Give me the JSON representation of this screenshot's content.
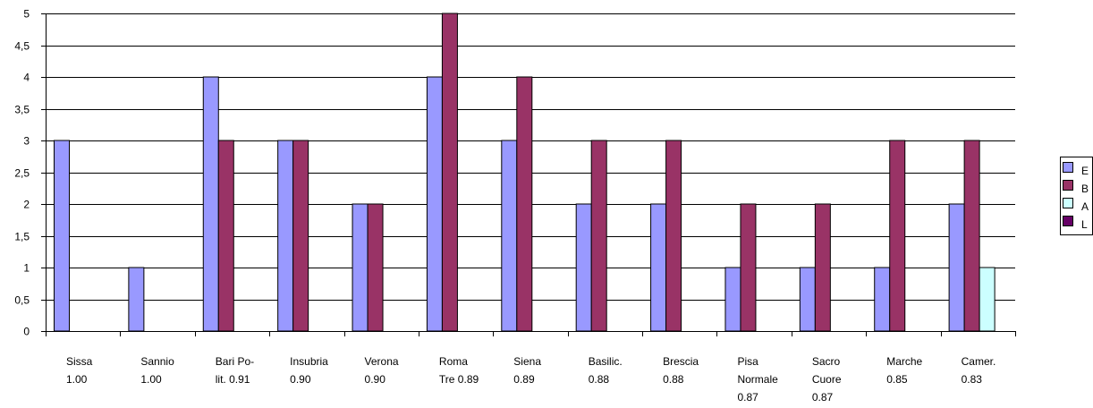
{
  "chart_data": {
    "type": "bar",
    "categories": [
      [
        "Sissa",
        "1.00"
      ],
      [
        "Sannio",
        "1.00"
      ],
      [
        "Bari Po-",
        "lit. 0.91"
      ],
      [
        "Insubria",
        "0.90"
      ],
      [
        "Verona",
        "0.90"
      ],
      [
        "Roma",
        "Tre 0.89"
      ],
      [
        "Siena",
        "0.89"
      ],
      [
        "Basilic.",
        "0.88"
      ],
      [
        "Brescia",
        "0.88"
      ],
      [
        "Pisa",
        "Normale",
        "0.87"
      ],
      [
        "Sacro",
        "Cuore",
        "0.87"
      ],
      [
        "Marche",
        "0.85"
      ],
      [
        "Camer.",
        "0.83"
      ]
    ],
    "series": [
      {
        "name": "E",
        "color": "#9999ff",
        "values": [
          3,
          1,
          4,
          3,
          2,
          4,
          3,
          2,
          2,
          1,
          1,
          1,
          2
        ]
      },
      {
        "name": "B",
        "color": "#993366",
        "values": [
          0,
          0,
          3,
          3,
          2,
          5,
          4,
          3,
          3,
          2,
          2,
          3,
          3
        ]
      },
      {
        "name": "A",
        "color": "#ccffff",
        "values": [
          0,
          0,
          0,
          0,
          0,
          0,
          0,
          0,
          0,
          0,
          0,
          0,
          1
        ]
      },
      {
        "name": "L",
        "color": "#660066",
        "values": [
          0,
          0,
          0,
          0,
          0,
          0,
          0,
          0,
          0,
          0,
          0,
          0,
          0
        ]
      }
    ],
    "ylim": [
      0,
      5
    ],
    "yticks": [
      "0",
      "0,5",
      "1",
      "1,5",
      "2",
      "2,5",
      "3",
      "3,5",
      "4",
      "4,5",
      "5"
    ],
    "grid": true,
    "legend_position": "right",
    "title": "",
    "xlabel": "",
    "ylabel": ""
  }
}
